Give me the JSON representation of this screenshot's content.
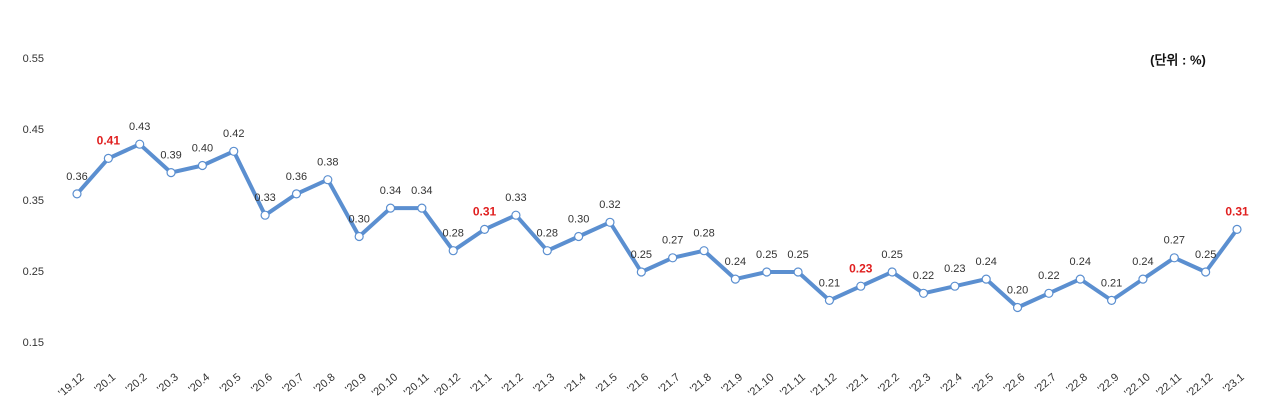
{
  "chart_data": {
    "type": "line",
    "annotation": "(단위 : %)",
    "categories": [
      "'19.12",
      "'20.1",
      "'20.2",
      "'20.3",
      "'20.4",
      "'20.5",
      "'20.6",
      "'20.7",
      "'20.8",
      "'20.9",
      "'20.10",
      "'20.11",
      "'20.12",
      "'21.1",
      "'21.2",
      "'21.3",
      "'21.4",
      "'21.5",
      "'21.6",
      "'21.7",
      "'21.8",
      "'21.9",
      "'21.10",
      "'21.11",
      "'21.12",
      "'22.1",
      "'22.2",
      "'22.3",
      "'22.4",
      "'22.5",
      "'22.6",
      "'22.7",
      "'22.8",
      "'22.9",
      "'22.10",
      "'22.11",
      "'22.12",
      "'23.1"
    ],
    "series": [
      {
        "color": "#5b8fd0",
        "values": [
          0.36,
          0.41,
          0.43,
          0.39,
          0.4,
          0.42,
          0.33,
          0.36,
          0.38,
          0.3,
          0.34,
          0.34,
          0.28,
          0.31,
          0.33,
          0.28,
          0.3,
          0.32,
          0.25,
          0.27,
          0.28,
          0.24,
          0.25,
          0.25,
          0.21,
          0.23,
          0.25,
          0.22,
          0.23,
          0.24,
          0.2,
          0.22,
          0.24,
          0.21,
          0.24,
          0.27,
          0.25,
          0.31
        ],
        "value_labels": [
          "0.36",
          "0.41",
          "0.43",
          "0.39",
          "0.40",
          "0.42",
          "0.33",
          "0.36",
          "0.38",
          "0.30",
          "0.34",
          "0.34",
          "0.28",
          "0.31",
          "0.33",
          "0.28",
          "0.30",
          "0.32",
          "0.25",
          "0.27",
          "0.28",
          "0.24",
          "0.25",
          "0.25",
          "0.21",
          "0.23",
          "0.25",
          "0.22",
          "0.23",
          "0.24",
          "0.20",
          "0.22",
          "0.24",
          "0.21",
          "0.24",
          "0.27",
          "0.25",
          "0.31"
        ]
      }
    ],
    "highlighted_labels": [
      1,
      13,
      25,
      37
    ],
    "highlight_color": "#e02020",
    "ylim": [
      0.15,
      0.55
    ],
    "yticks": [
      0.15,
      0.25,
      0.35,
      0.45,
      0.55
    ],
    "grid": false
  }
}
